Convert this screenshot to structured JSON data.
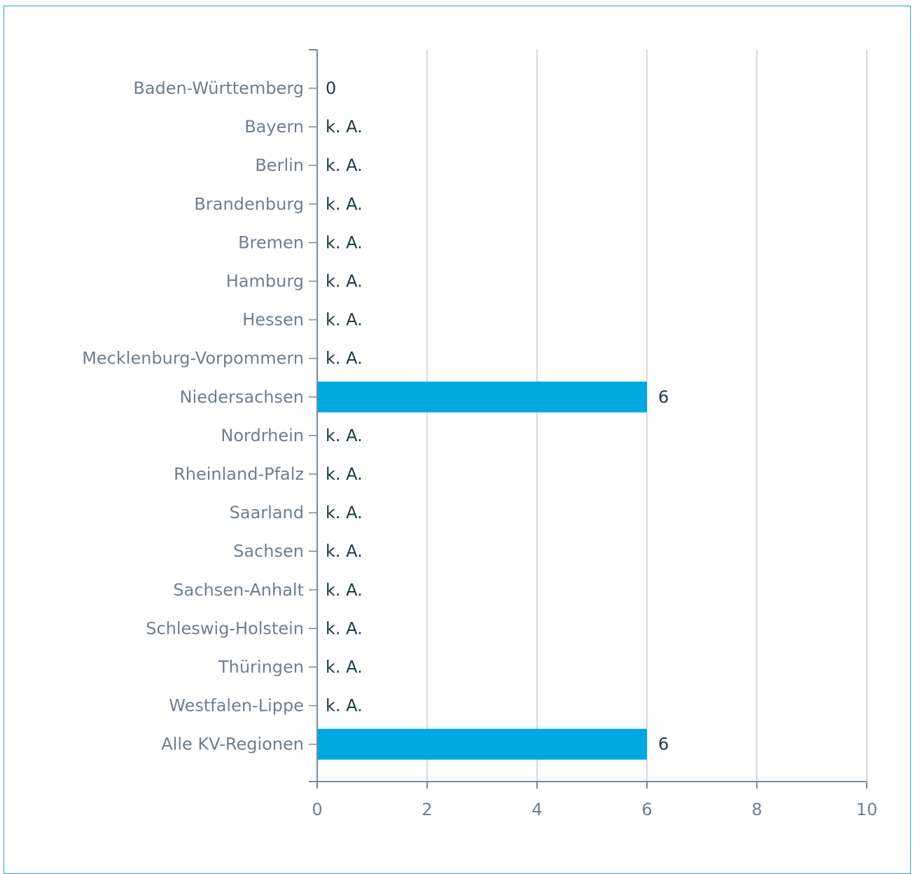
{
  "chart_data": {
    "type": "bar",
    "orientation": "horizontal",
    "categories": [
      "Baden-Württemberg",
      "Bayern",
      "Berlin",
      "Brandenburg",
      "Bremen",
      "Hamburg",
      "Hessen",
      "Mecklenburg-Vorpommern",
      "Niedersachsen",
      "Nordrhein",
      "Rheinland-Pfalz",
      "Saarland",
      "Sachsen",
      "Sachsen-Anhalt",
      "Schleswig-Holstein",
      "Thüringen",
      "Westfalen-Lippe",
      "Alle KV-Regionen"
    ],
    "values": [
      0,
      null,
      null,
      null,
      null,
      null,
      null,
      null,
      6,
      null,
      null,
      null,
      null,
      null,
      null,
      null,
      null,
      6
    ],
    "data_labels": [
      "0",
      "k. A.",
      "k. A.",
      "k. A.",
      "k. A.",
      "k. A.",
      "k. A.",
      "k. A.",
      "6",
      "k. A.",
      "k. A.",
      "k. A.",
      "k. A.",
      "k. A.",
      "k. A.",
      "k. A.",
      "k. A.",
      "6"
    ],
    "xlim": [
      0,
      10
    ],
    "xticks": [
      "0",
      "2",
      "4",
      "6",
      "8",
      "10"
    ],
    "grid": true,
    "colors": {
      "bar": "#00a8e0",
      "grid": "#d9d9d9",
      "axis": "#7a8a96",
      "frame": "#29a3d6"
    }
  }
}
